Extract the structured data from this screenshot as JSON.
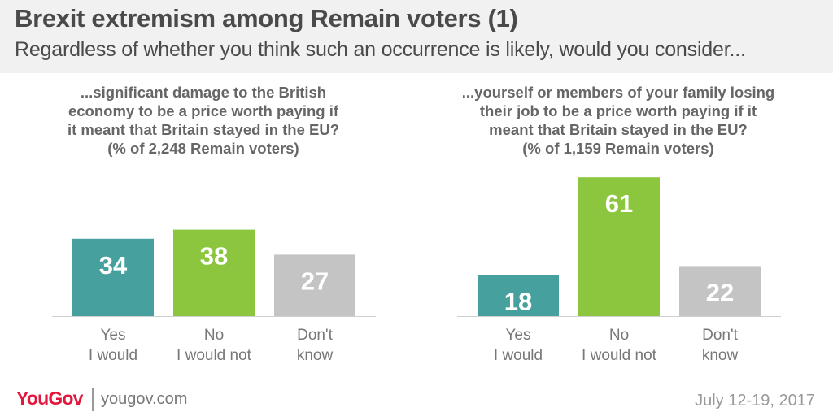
{
  "title": "Brexit extremism among Remain voters (1)",
  "subtitle": "Regardless of whether you think such an occurrence is likely, would you consider...",
  "colors": {
    "header_bg": "#f1f1f1",
    "yes": "#45a09e",
    "no": "#8cc63f",
    "dont_know": "#c4c4c4",
    "brand": "#e3173e"
  },
  "chart_data": [
    {
      "type": "bar",
      "question_lines": [
        "...significant damage to the British",
        "economy to be a price worth paying if",
        "it meant that Britain stayed in the EU?",
        "(% of 2,248 Remain voters)"
      ],
      "categories": [
        [
          "Yes",
          "I would"
        ],
        [
          "No",
          "I would not"
        ],
        [
          "Don't",
          "know"
        ]
      ],
      "values": [
        34,
        38,
        27
      ],
      "value_labels": [
        "34",
        "38",
        "27"
      ]
    },
    {
      "type": "bar",
      "question_lines": [
        "...yourself or members of your family losing",
        "their job to be a price worth paying if it",
        "meant that Britain stayed in the EU?",
        "(% of 1,159 Remain voters)"
      ],
      "categories": [
        [
          "Yes",
          "I would"
        ],
        [
          "No",
          "I would not"
        ],
        [
          "Don't",
          "know"
        ]
      ],
      "values": [
        18,
        61,
        22
      ],
      "value_labels": [
        "18",
        "61",
        "22"
      ]
    }
  ],
  "footer": {
    "brand": "YouGov",
    "site": "yougov.com",
    "date": "July 12-19, 2017"
  }
}
